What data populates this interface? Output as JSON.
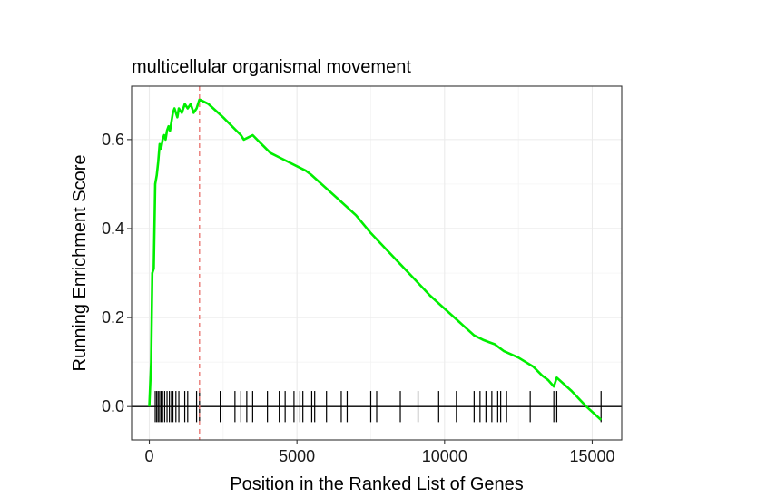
{
  "chart_data": {
    "type": "line",
    "title": "multicellular organismal movement",
    "xlabel": "Position in the Ranked List of Genes",
    "ylabel": "Running Enrichment Score",
    "xlim": [
      -600,
      16000
    ],
    "ylim": [
      -0.075,
      0.72
    ],
    "x_ticks": [
      0,
      5000,
      10000,
      15000
    ],
    "y_ticks": [
      0.0,
      0.2,
      0.4,
      0.6
    ],
    "y_tick_labels": [
      "0.0",
      "0.2",
      "0.4",
      "0.6"
    ],
    "grid": true,
    "legend": "none",
    "series": [
      {
        "color": "#00ee00",
        "x": [
          0,
          60,
          100,
          150,
          200,
          250,
          300,
          350,
          400,
          450,
          500,
          550,
          600,
          650,
          700,
          750,
          800,
          850,
          950,
          1000,
          1100,
          1200,
          1300,
          1400,
          1500,
          1600,
          1700,
          2000,
          2500,
          2800,
          3100,
          3200,
          3500,
          3800,
          4100,
          4400,
          4700,
          5000,
          5300,
          5500,
          6000,
          6500,
          7000,
          7500,
          8000,
          8500,
          9000,
          9500,
          10000,
          10500,
          11000,
          11300,
          11500,
          11700,
          11900,
          12000,
          12500,
          13000,
          13300,
          13500,
          13700,
          13800,
          14300,
          14800,
          15300
        ],
        "y": [
          0.0,
          0.1,
          0.3,
          0.31,
          0.5,
          0.52,
          0.55,
          0.59,
          0.58,
          0.6,
          0.61,
          0.6,
          0.62,
          0.63,
          0.62,
          0.64,
          0.66,
          0.67,
          0.65,
          0.67,
          0.66,
          0.68,
          0.67,
          0.68,
          0.66,
          0.67,
          0.69,
          0.68,
          0.65,
          0.63,
          0.61,
          0.6,
          0.61,
          0.59,
          0.57,
          0.56,
          0.55,
          0.54,
          0.53,
          0.52,
          0.49,
          0.46,
          0.43,
          0.39,
          0.355,
          0.32,
          0.285,
          0.25,
          0.22,
          0.19,
          0.16,
          0.15,
          0.145,
          0.14,
          0.13,
          0.125,
          0.11,
          0.09,
          0.07,
          0.06,
          0.045,
          0.065,
          0.035,
          0.0,
          -0.03
        ]
      }
    ],
    "peak_marker": {
      "x": 1700,
      "color": "#e8716c",
      "style": "dashed"
    },
    "gene_hits": [
      200,
      250,
      300,
      350,
      400,
      450,
      520,
      600,
      680,
      750,
      800,
      900,
      1000,
      1200,
      1300,
      1600,
      1700,
      2400,
      2900,
      3100,
      3300,
      3500,
      4000,
      4400,
      4600,
      4900,
      5100,
      5200,
      5500,
      5600,
      6000,
      6500,
      6700,
      7500,
      7700,
      8500,
      9100,
      9800,
      10400,
      11000,
      11200,
      11400,
      11600,
      11800,
      11900,
      12100,
      12900,
      13700,
      13800,
      15300
    ]
  }
}
